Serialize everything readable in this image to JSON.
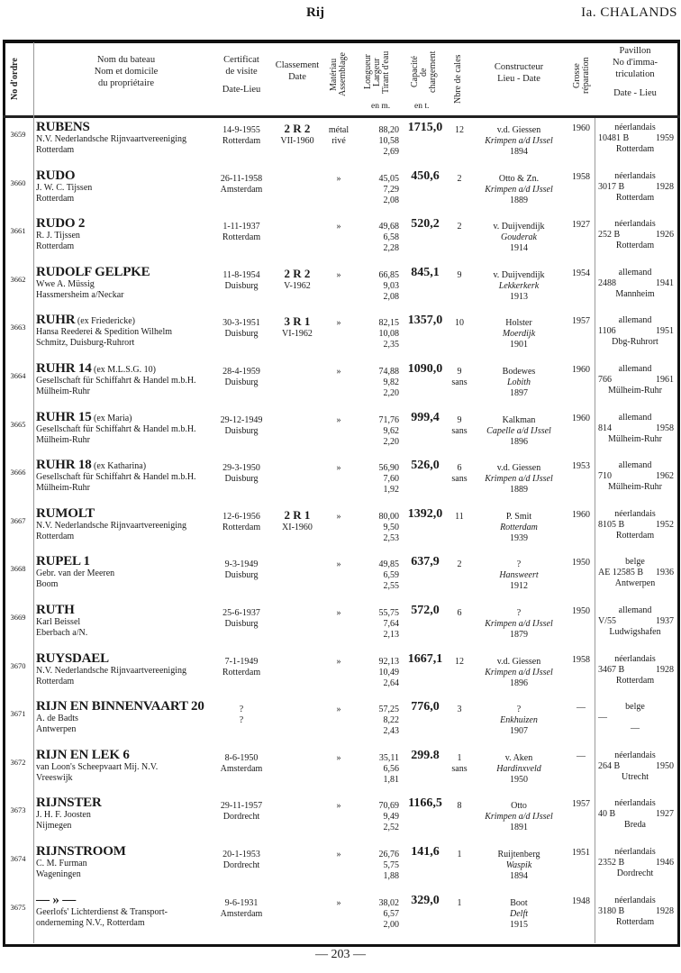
{
  "header": {
    "running_title": "Rij",
    "section": "Ia. CHALANDS"
  },
  "columns": {
    "no": "No d'ordre",
    "name": [
      "Nom du bateau",
      "Nom et domicile",
      "du propriétaire"
    ],
    "certificat": [
      "Certificat",
      "de visite",
      "Date-Lieu"
    ],
    "classement": [
      "Classement",
      "Date"
    ],
    "materiau": [
      "Matériau",
      "Assemblage"
    ],
    "dimensions": [
      "Longueur",
      "Largeur",
      "Tirant d'eau"
    ],
    "dimensions_unit": "en m.",
    "capacite": [
      "Capacité",
      "de",
      "chargement"
    ],
    "capacite_unit": "en t.",
    "cales": "Nbre de cales",
    "constructeur": [
      "Constructeur",
      "Lieu - Date"
    ],
    "grosse": [
      "Grosse",
      "réparation"
    ],
    "pavillon": [
      "Pavillon",
      "No d'imma-",
      "triculation",
      "Date - Lieu"
    ]
  },
  "rows": [
    {
      "no": "3659",
      "name": "RUBENS",
      "ex": "",
      "owner": [
        "N.V. Nederlandsche Rijnvaartvereeniging",
        "Rotterdam"
      ],
      "cert": [
        "14-9-1955",
        "Rotterdam"
      ],
      "cls": "2 R 2",
      "cls_date": "VII-1960",
      "mat": [
        "métal",
        "rivé"
      ],
      "dims": [
        "88,20",
        "10,58",
        "2,69"
      ],
      "cap": "1715,0",
      "cales": [
        "12"
      ],
      "con": [
        "v.d. Giessen",
        "Krimpen a/d IJssel",
        "1894"
      ],
      "gr": "1960",
      "pav": [
        "néerlandais",
        "10481 B",
        "1959",
        "Rotterdam"
      ]
    },
    {
      "no": "3660",
      "name": "RUDO",
      "ex": "",
      "owner": [
        "J. W. C. Tijssen",
        "Rotterdam"
      ],
      "cert": [
        "26-11-1958",
        "Amsterdam"
      ],
      "cls": "",
      "cls_date": "",
      "mat": [
        "»",
        ""
      ],
      "dims": [
        "45,05",
        "7,29",
        "2,08"
      ],
      "cap": "450,6",
      "cales": [
        "2"
      ],
      "con": [
        "Otto & Zn.",
        "Krimpen a/d IJssel",
        "1889"
      ],
      "gr": "1958",
      "pav": [
        "néerlandais",
        "3017 B",
        "1928",
        "Rotterdam"
      ]
    },
    {
      "no": "3661",
      "name": "RUDO 2",
      "ex": "",
      "owner": [
        "R. J. Tijssen",
        "Rotterdam"
      ],
      "cert": [
        "1-11-1937",
        "Rotterdam"
      ],
      "cls": "",
      "cls_date": "",
      "mat": [
        "»",
        ""
      ],
      "dims": [
        "49,68",
        "6,58",
        "2,28"
      ],
      "cap": "520,2",
      "cales": [
        "2"
      ],
      "con": [
        "v. Duijvendijk",
        "Gouderak",
        "1914"
      ],
      "gr": "1927",
      "pav": [
        "néerlandais",
        "252 B",
        "1926",
        "Rotterdam"
      ]
    },
    {
      "no": "3662",
      "name": "RUDOLF GELPKE",
      "ex": "",
      "owner": [
        "Wwe A. Müssig",
        "Hassmersheim a/Neckar"
      ],
      "cert": [
        "11-8-1954",
        "Duisburg"
      ],
      "cls": "2 R 2",
      "cls_date": "V-1962",
      "mat": [
        "»",
        ""
      ],
      "dims": [
        "66,85",
        "9,03",
        "2,08"
      ],
      "cap": "845,1",
      "cales": [
        "9"
      ],
      "con": [
        "v. Duijvendijk",
        "Lekkerkerk",
        "1913"
      ],
      "gr": "1954",
      "pav": [
        "allemand",
        "2488",
        "1941",
        "Mannheim"
      ]
    },
    {
      "no": "3663",
      "name": "RUHR",
      "ex": "(ex Friedericke)",
      "owner": [
        "Hansa Reederei & Spedition Wilhelm",
        "Schmitz, Duisburg-Ruhrort"
      ],
      "cert": [
        "30-3-1951",
        "Duisburg"
      ],
      "cls": "3 R 1",
      "cls_date": "VI-1962",
      "mat": [
        "»",
        ""
      ],
      "dims": [
        "82,15",
        "10,08",
        "2,35"
      ],
      "cap": "1357,0",
      "cales": [
        "10"
      ],
      "con": [
        "Holster",
        "Moerdijk",
        "1901"
      ],
      "gr": "1957",
      "pav": [
        "allemand",
        "1106",
        "1951",
        "Dbg-Ruhrort"
      ]
    },
    {
      "no": "3664",
      "name": "RUHR 14",
      "ex": "(ex M.L.S.G. 10)",
      "owner": [
        "Gesellschaft für Schiffahrt & Handel m.b.H.",
        "Mülheim-Ruhr"
      ],
      "cert": [
        "28-4-1959",
        "Duisburg"
      ],
      "cls": "",
      "cls_date": "",
      "mat": [
        "»",
        ""
      ],
      "dims": [
        "74,88",
        "9,82",
        "2,20"
      ],
      "cap": "1090,0",
      "cales": [
        "9",
        "sans"
      ],
      "con": [
        "Bodewes",
        "Lobith",
        "1897"
      ],
      "gr": "1960",
      "pav": [
        "allemand",
        "766",
        "1961",
        "Mülheim-Ruhr"
      ]
    },
    {
      "no": "3665",
      "name": "RUHR 15",
      "ex": "(ex Maria)",
      "owner": [
        "Gesellschaft für Schiffahrt & Handel m.b.H.",
        "Mülheim-Ruhr"
      ],
      "cert": [
        "29-12-1949",
        "Duisburg"
      ],
      "cls": "",
      "cls_date": "",
      "mat": [
        "»",
        ""
      ],
      "dims": [
        "71,76",
        "9,62",
        "2,20"
      ],
      "cap": "999,4",
      "cales": [
        "9",
        "sans"
      ],
      "con": [
        "Kalkman",
        "Capelle a/d IJssel",
        "1896"
      ],
      "gr": "1960",
      "pav": [
        "allemand",
        "814",
        "1958",
        "Mülheim-Ruhr"
      ]
    },
    {
      "no": "3666",
      "name": "RUHR 18",
      "ex": "(ex Katharina)",
      "owner": [
        "Gesellschaft für Schiffahrt & Handel m.b.H.",
        "Mülheim-Ruhr"
      ],
      "cert": [
        "29-3-1950",
        "Duisburg"
      ],
      "cls": "",
      "cls_date": "",
      "mat": [
        "»",
        ""
      ],
      "dims": [
        "56,90",
        "7,60",
        "1,92"
      ],
      "cap": "526,0",
      "cales": [
        "6",
        "sans"
      ],
      "con": [
        "v.d. Giessen",
        "Krimpen a/d IJssel",
        "1889"
      ],
      "gr": "1953",
      "pav": [
        "allemand",
        "710",
        "1962",
        "Mülheim-Ruhr"
      ]
    },
    {
      "no": "3667",
      "name": "RUMOLT",
      "ex": "",
      "owner": [
        "N.V. Nederlandsche Rijnvaartvereeniging",
        "Rotterdam"
      ],
      "cert": [
        "12-6-1956",
        "Rotterdam"
      ],
      "cls": "2 R 1",
      "cls_date": "XI-1960",
      "mat": [
        "»",
        ""
      ],
      "dims": [
        "80,00",
        "9,50",
        "2,53"
      ],
      "cap": "1392,0",
      "cales": [
        "11"
      ],
      "con": [
        "P. Smit",
        "Rotterdam",
        "1939"
      ],
      "gr": "1960",
      "pav": [
        "néerlandais",
        "8105 B",
        "1952",
        "Rotterdam"
      ]
    },
    {
      "no": "3668",
      "name": "RUPEL 1",
      "ex": "",
      "owner": [
        "Gebr. van der Meeren",
        "Boom"
      ],
      "cert": [
        "9-3-1949",
        "Duisburg"
      ],
      "cls": "",
      "cls_date": "",
      "mat": [
        "»",
        ""
      ],
      "dims": [
        "49,85",
        "6,59",
        "2,55"
      ],
      "cap": "637,9",
      "cales": [
        "2"
      ],
      "con": [
        "?",
        "Hansweert",
        "1912"
      ],
      "gr": "1950",
      "pav": [
        "belge",
        "AE 12585 B",
        "1936",
        "Antwerpen"
      ]
    },
    {
      "no": "3669",
      "name": "RUTH",
      "ex": "",
      "owner": [
        "Karl Beissel",
        "Eberbach a/N."
      ],
      "cert": [
        "25-6-1937",
        "Duisburg"
      ],
      "cls": "",
      "cls_date": "",
      "mat": [
        "»",
        ""
      ],
      "dims": [
        "55,75",
        "7,64",
        "2,13"
      ],
      "cap": "572,0",
      "cales": [
        "6"
      ],
      "con": [
        "?",
        "Krimpen a/d IJssel",
        "1879"
      ],
      "gr": "1950",
      "pav": [
        "allemand",
        "V/55",
        "1937",
        "Ludwigshafen"
      ]
    },
    {
      "no": "3670",
      "name": "RUYSDAEL",
      "ex": "",
      "owner": [
        "N.V. Nederlandsche Rijnvaartvereeniging",
        "Rotterdam"
      ],
      "cert": [
        "7-1-1949",
        "Rotterdam"
      ],
      "cls": "",
      "cls_date": "",
      "mat": [
        "»",
        ""
      ],
      "dims": [
        "92,13",
        "10,49",
        "2,64"
      ],
      "cap": "1667,1",
      "cales": [
        "12"
      ],
      "con": [
        "v.d. Giessen",
        "Krimpen a/d IJssel",
        "1896"
      ],
      "gr": "1958",
      "pav": [
        "néerlandais",
        "3467 B",
        "1928",
        "Rotterdam"
      ]
    },
    {
      "no": "3671",
      "name": "RIJN EN BINNENVAART 20",
      "ex": "",
      "owner": [
        "A. de Badts",
        "Antwerpen"
      ],
      "cert": [
        "?",
        "?"
      ],
      "cls": "",
      "cls_date": "",
      "mat": [
        "»",
        ""
      ],
      "dims": [
        "57,25",
        "8,22",
        "2,43"
      ],
      "cap": "776,0",
      "cales": [
        "3"
      ],
      "con": [
        "?",
        "Enkhuizen",
        "1907"
      ],
      "gr": "—",
      "pav": [
        "belge",
        "—",
        "",
        "—"
      ]
    },
    {
      "no": "3672",
      "name": "RIJN EN LEK 6",
      "ex": "",
      "owner": [
        "van Loon's Scheepvaart Mij. N.V.",
        "Vreeswijk"
      ],
      "cert": [
        "8-6-1950",
        "Amsterdam"
      ],
      "cls": "",
      "cls_date": "",
      "mat": [
        "»",
        ""
      ],
      "dims": [
        "35,11",
        "6,56",
        "1,81"
      ],
      "cap": "299.8",
      "cales": [
        "1",
        "sans"
      ],
      "con": [
        "v. Aken",
        "Hardinxveld",
        "1950"
      ],
      "gr": "—",
      "pav": [
        "néerlandais",
        "264 B",
        "1950",
        "Utrecht"
      ]
    },
    {
      "no": "3673",
      "name": "RIJNSTER",
      "ex": "",
      "owner": [
        "J. H. F. Joosten",
        "Nijmegen"
      ],
      "cert": [
        "29-11-1957",
        "Dordrecht"
      ],
      "cls": "",
      "cls_date": "",
      "mat": [
        "»",
        ""
      ],
      "dims": [
        "70,69",
        "9,49",
        "2,52"
      ],
      "cap": "1166,5",
      "cales": [
        "8"
      ],
      "con": [
        "Otto",
        "Krimpen a/d IJssel",
        "1891"
      ],
      "gr": "1957",
      "pav": [
        "néerlandais",
        "40 B",
        "1927",
        "Breda"
      ]
    },
    {
      "no": "3674",
      "name": "RIJNSTROOM",
      "ex": "",
      "owner": [
        "C. M. Furman",
        "Wageningen"
      ],
      "cert": [
        "20-1-1953",
        "Dordrecht"
      ],
      "cls": "",
      "cls_date": "",
      "mat": [
        "»",
        ""
      ],
      "dims": [
        "26,76",
        "5,75",
        "1,88"
      ],
      "cap": "141,6",
      "cales": [
        "1"
      ],
      "con": [
        "Ruijtenberg",
        "Waspik",
        "1894"
      ],
      "gr": "1951",
      "pav": [
        "néerlandais",
        "2352 B",
        "1946",
        "Dordrecht"
      ]
    },
    {
      "no": "3675",
      "name": "— » —",
      "ex": "",
      "owner": [
        "Geerlofs' Lichterdienst & Transport-",
        "onderneming N.V., Rotterdam"
      ],
      "cert": [
        "9-6-1931",
        "Amsterdam"
      ],
      "cls": "",
      "cls_date": "",
      "mat": [
        "»",
        ""
      ],
      "dims": [
        "38,02",
        "6,57",
        "2,00"
      ],
      "cap": "329,0",
      "cales": [
        "1"
      ],
      "con": [
        "Boot",
        "Delft",
        "1915"
      ],
      "gr": "1948",
      "pav": [
        "néerlandais",
        "3180 B",
        "1928",
        "Rotterdam"
      ]
    }
  ],
  "footer": {
    "page_number": "— 203 —"
  }
}
